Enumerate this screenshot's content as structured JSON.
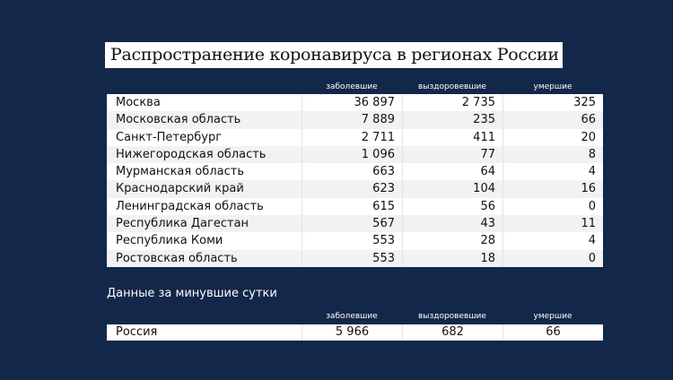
{
  "title": "Распространение коронавируса в регионах России",
  "columns": [
    "заболевшие",
    "выздоровевшие",
    "умершие"
  ],
  "rows": [
    [
      "Москва",
      "36 897",
      "2 735",
      "325"
    ],
    [
      "Московская область",
      "7 889",
      "235",
      "66"
    ],
    [
      "Санкт-Петербург",
      "2 711",
      "411",
      "20"
    ],
    [
      "Нижегородская область",
      "1 096",
      "77",
      "8"
    ],
    [
      "Мурманская область",
      "663",
      "64",
      "4"
    ],
    [
      "Краснодарский край",
      "623",
      "104",
      "16"
    ],
    [
      "Ленинградская область",
      "615",
      "56",
      "0"
    ],
    [
      "Республика Дагестан",
      "567",
      "43",
      "11"
    ],
    [
      "Республика Коми",
      "553",
      "28",
      "4"
    ],
    [
      "Ростовская область",
      "553",
      "18",
      "0"
    ]
  ],
  "daily": {
    "label": "Данные за минувшие сутки",
    "columns": [
      "заболевшие",
      "выздоровевшие",
      "умершие"
    ],
    "row": [
      "Россия",
      "5 966",
      "682",
      "66"
    ]
  }
}
